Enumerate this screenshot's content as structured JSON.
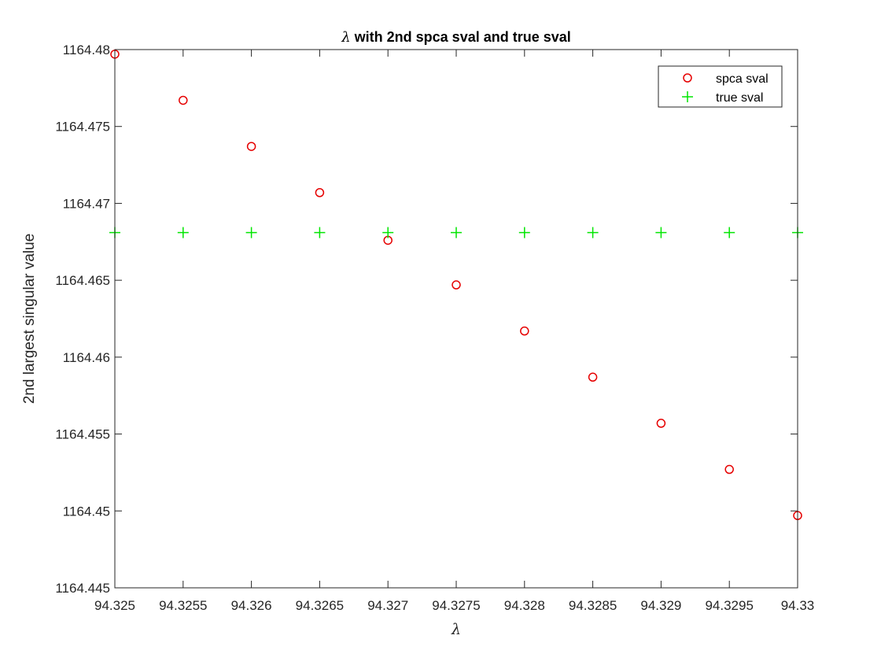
{
  "chart_data": {
    "type": "scatter",
    "title": {
      "symbol": "λ",
      "text": " with 2nd spca sval and true sval"
    },
    "xlabel": "λ",
    "ylabel": "2nd largest singular value",
    "xlim": [
      94.325,
      94.33
    ],
    "ylim": [
      1164.445,
      1164.48
    ],
    "xticks": [
      94.325,
      94.3255,
      94.326,
      94.3265,
      94.327,
      94.3275,
      94.328,
      94.3285,
      94.329,
      94.3295,
      94.33
    ],
    "xtick_labels": [
      "94.325",
      "94.3255",
      "94.326",
      "94.3265",
      "94.327",
      "94.3275",
      "94.328",
      "94.3285",
      "94.329",
      "94.3295",
      "94.33"
    ],
    "yticks": [
      1164.445,
      1164.45,
      1164.455,
      1164.46,
      1164.465,
      1164.47,
      1164.475,
      1164.48
    ],
    "ytick_labels": [
      "1164.445",
      "1164.45",
      "1164.455",
      "1164.46",
      "1164.465",
      "1164.47",
      "1164.475",
      "1164.48"
    ],
    "grid": false,
    "legend_position": "top-right",
    "x": [
      94.325,
      94.3255,
      94.326,
      94.3265,
      94.327,
      94.3275,
      94.328,
      94.3285,
      94.329,
      94.3295,
      94.33
    ],
    "series": [
      {
        "name": "spca sval",
        "marker": "circle",
        "color": "#e60000",
        "values": [
          1164.4797,
          1164.4767,
          1164.4737,
          1164.4707,
          1164.4676,
          1164.4647,
          1164.4617,
          1164.4587,
          1164.4557,
          1164.4527,
          1164.4497
        ]
      },
      {
        "name": "true sval",
        "marker": "plus",
        "color": "#00e600",
        "values": [
          1164.4681,
          1164.4681,
          1164.4681,
          1164.4681,
          1164.4681,
          1164.4681,
          1164.4681,
          1164.4681,
          1164.4681,
          1164.4681,
          1164.4681
        ]
      }
    ]
  }
}
